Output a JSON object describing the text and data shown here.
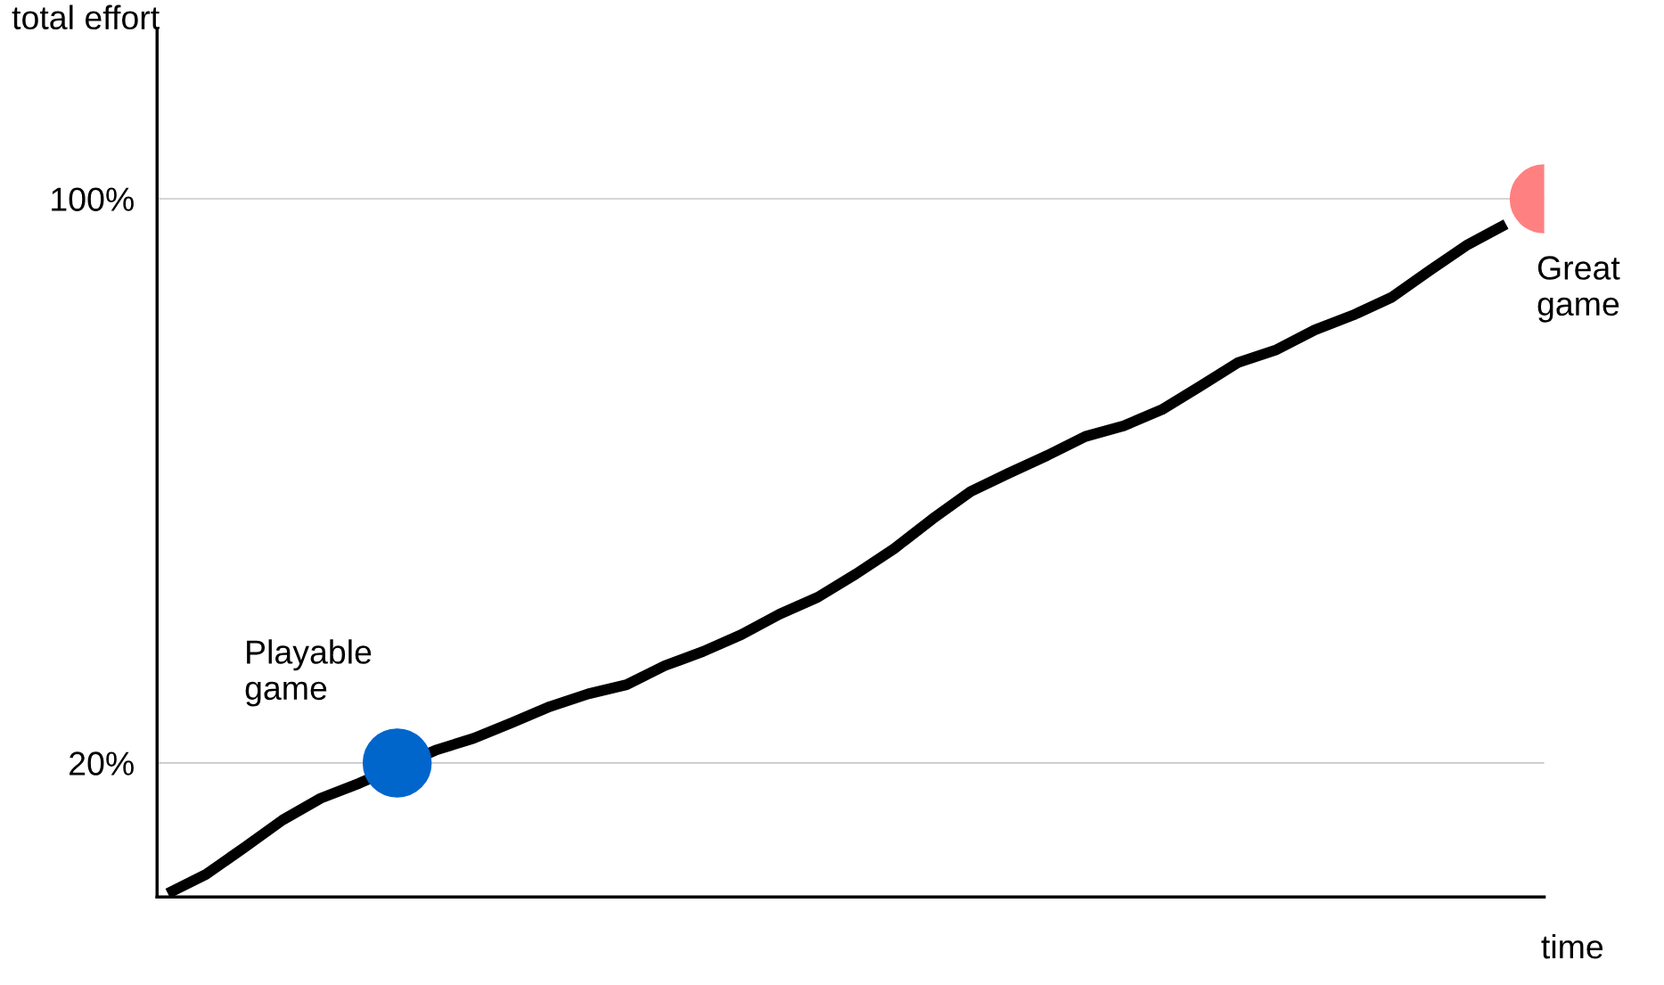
{
  "chart_data": {
    "type": "line",
    "ylabel": "total effort",
    "xlabel": "time",
    "categories": [
      null,
      null,
      null,
      null,
      null,
      null,
      null,
      null,
      null,
      null,
      null,
      null,
      null,
      null,
      null,
      null,
      null,
      null,
      null,
      null,
      null,
      null,
      null,
      null,
      null,
      null,
      null,
      null,
      null,
      null,
      null,
      null,
      null,
      null,
      null,
      null,
      null
    ],
    "series": [
      {
        "color": "#000000",
        "marker": "none",
        "values": [
          1.5,
          4.2,
          8.0,
          11.9,
          15.0,
          17.1,
          null,
          21.8,
          23.5,
          25.7,
          28.0,
          29.8,
          31.1,
          33.8,
          35.8,
          38.2,
          41.1,
          43.5,
          46.8,
          50.4,
          54.6,
          58.5,
          61.1,
          63.6,
          66.3,
          67.8,
          70.1,
          73.4,
          76.8,
          78.6,
          81.4,
          83.5,
          86.0,
          89.8,
          93.5,
          96.4,
          null
        ]
      },
      {
        "type": "scatter",
        "color": "#0066cc",
        "marker": "circle",
        "values": [
          null,
          null,
          null,
          null,
          null,
          null,
          20,
          null,
          null,
          null,
          null,
          null,
          null,
          null,
          null,
          null,
          null,
          null,
          null,
          null,
          null,
          null,
          null,
          null,
          null,
          null,
          null,
          null,
          null,
          null,
          null,
          null,
          null,
          null,
          null,
          null,
          null
        ]
      },
      {
        "type": "scatter",
        "color": "#ff8080",
        "marker": "circle",
        "values": [
          null,
          null,
          null,
          null,
          null,
          null,
          null,
          null,
          null,
          null,
          null,
          null,
          null,
          null,
          null,
          null,
          null,
          null,
          null,
          null,
          null,
          null,
          null,
          null,
          null,
          null,
          null,
          null,
          null,
          null,
          null,
          null,
          null,
          null,
          null,
          null,
          100
        ]
      }
    ],
    "annotations": [
      "Playable\ngame",
      "Great\ngame"
    ],
    "ylim": [
      1,
      124
    ],
    "yticks": [
      {
        "value": 20,
        "label": "20%"
      },
      {
        "value": 100,
        "label": "100%"
      }
    ],
    "grid": "y",
    "tick_labels": "y",
    "legend": false
  }
}
